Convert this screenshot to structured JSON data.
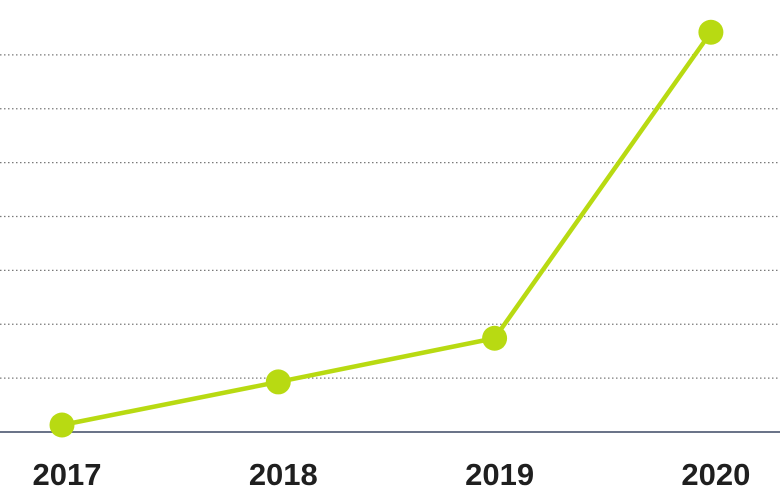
{
  "chart_data": {
    "type": "line",
    "categories": [
      "2017",
      "2018",
      "2019",
      "2020"
    ],
    "series": [
      {
        "values": [
          0.13,
          0.93,
          1.74,
          7.42
        ],
        "color": "#b8da12"
      }
    ],
    "ylim": [
      0,
      8
    ],
    "yticks": [
      1,
      2,
      3,
      4,
      5,
      6,
      7
    ],
    "y_tick_labels": false,
    "grid": true,
    "grid_color": "#7a7a7a",
    "axis_color": "#6b7489"
  }
}
